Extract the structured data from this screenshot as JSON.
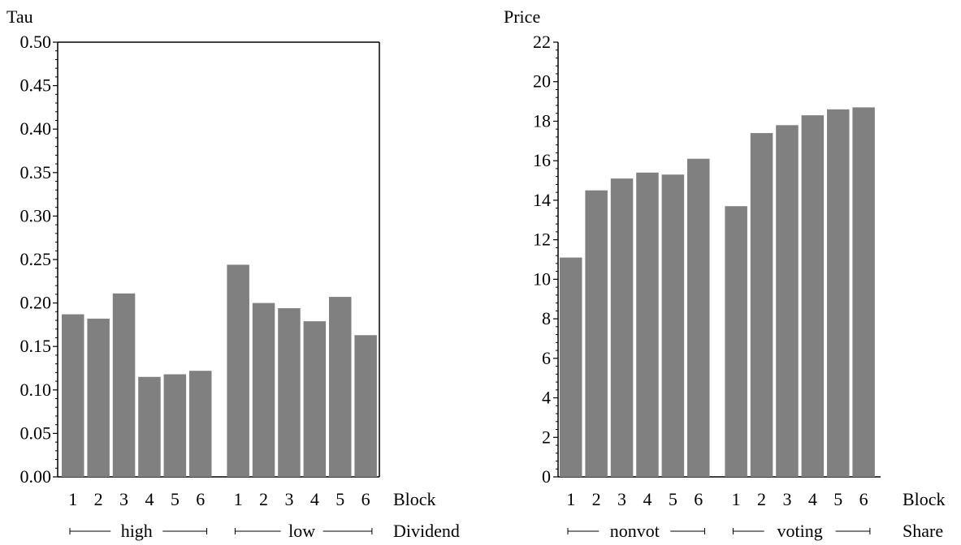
{
  "chart_data": [
    {
      "type": "bar",
      "ylabel": "Tau",
      "ylim": [
        0,
        0.5
      ],
      "ytick_labels": [
        "0.00",
        "0.05",
        "0.10",
        "0.15",
        "0.20",
        "0.25",
        "0.30",
        "0.35",
        "0.40",
        "0.45",
        "0.50"
      ],
      "ytick_values": [
        0,
        0.05,
        0.1,
        0.15,
        0.2,
        0.25,
        0.3,
        0.35,
        0.4,
        0.45,
        0.5
      ],
      "minor_ticks_per_major": 4,
      "bar_color": "#808080",
      "inner_axis_label": "Block",
      "outer_axis_label": "Dividend",
      "groups": [
        {
          "label": "high",
          "categories": [
            "1",
            "2",
            "3",
            "4",
            "5",
            "6"
          ],
          "values": [
            0.187,
            0.182,
            0.211,
            0.115,
            0.118,
            0.122
          ]
        },
        {
          "label": "low",
          "categories": [
            "1",
            "2",
            "3",
            "4",
            "5",
            "6"
          ],
          "values": [
            0.244,
            0.2,
            0.194,
            0.179,
            0.207,
            0.163
          ]
        }
      ]
    },
    {
      "type": "bar",
      "ylabel": "Price",
      "ylim": [
        0,
        22
      ],
      "ytick_labels": [
        "0",
        "2",
        "4",
        "6",
        "8",
        "10",
        "12",
        "14",
        "16",
        "18",
        "20",
        "22"
      ],
      "ytick_values": [
        0,
        2,
        4,
        6,
        8,
        10,
        12,
        14,
        16,
        18,
        20,
        22
      ],
      "minor_ticks_per_major": 4,
      "bar_color": "#808080",
      "inner_axis_label": "Block",
      "outer_axis_label": "Share",
      "groups": [
        {
          "label": "nonvot",
          "categories": [
            "1",
            "2",
            "3",
            "4",
            "5",
            "6"
          ],
          "values": [
            11.1,
            14.5,
            15.1,
            15.4,
            15.3,
            16.1
          ]
        },
        {
          "label": "voting",
          "categories": [
            "1",
            "2",
            "3",
            "4",
            "5",
            "6"
          ],
          "values": [
            13.7,
            17.4,
            17.8,
            18.3,
            18.6,
            18.7
          ]
        }
      ]
    }
  ]
}
